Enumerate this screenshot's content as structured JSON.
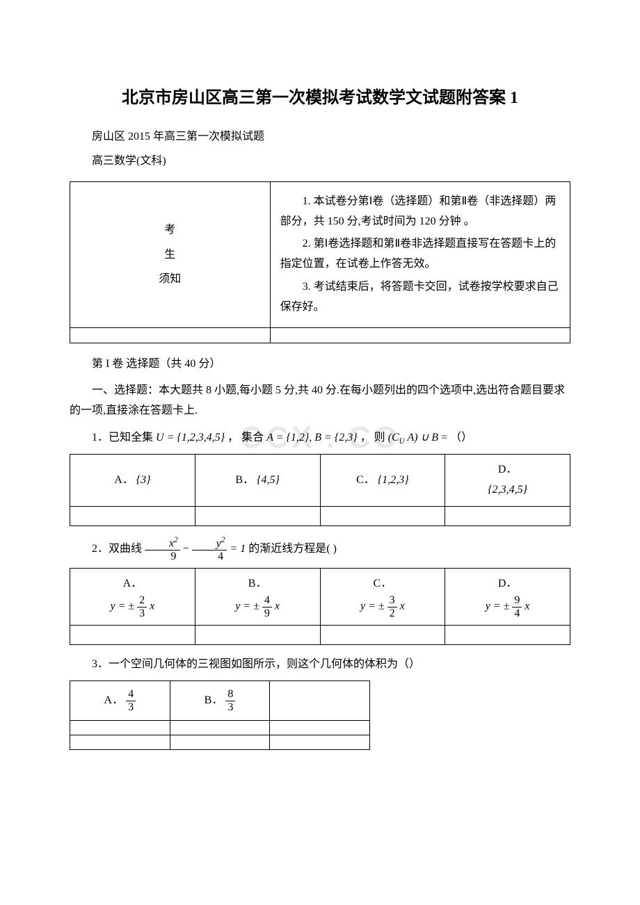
{
  "title": "北京市房山区高三第一次模拟考试数学文试题附答案 1",
  "subtitle1": "房山区 2015 年高三第一次模拟试题",
  "subtitle2": "高三数学(文科)",
  "watermark": "OCX . CO",
  "info_table": {
    "left": "考\n生\n须知",
    "right": [
      "1.  本试卷分第Ⅰ卷（选择题）和第Ⅱ卷（非选择题）两部分，共 150 分,考试时间为 120 分钟 。",
      "2.  第Ⅰ卷选择题和第Ⅱ卷非选择题直接写在答题卡上的指定位置，在试卷上作答无效。",
      "3.  考试结束后，将答题卡交回，试卷按学校要求自己保存好。"
    ]
  },
  "section1": "第 I 卷 选择题（共 40 分）",
  "section1_intro": "一、选择题：本大题共 8 小题,每小题 5 分,共 40 分.在每小题列出的四个选项中,选出符合题目要求的一项,直接涂在答题卡上.",
  "q1": {
    "prefix": "1．已知全集",
    "set_u": "U = {1,2,3,4,5}",
    "mid1": "，  集合",
    "set_a": "A = {1,2},   B = {2,3}",
    "mid2": "，  则",
    "expr": "(C_U A) ∪ B",
    "suffix": " = （）",
    "options": {
      "a_label": "A．",
      "a_val": "{3}",
      "b_label": "B．",
      "b_val": "{4,5}",
      "c_label": "C．",
      "c_val": "{1,2,3}",
      "d_label": "D．",
      "d_val": "{2,3,4,5}"
    }
  },
  "q2": {
    "prefix": "2．双曲线",
    "eq_left_num": "x²",
    "eq_left_den": "9",
    "eq_minus": "−",
    "eq_right_num": "y²",
    "eq_right_den": "4",
    "eq_eq": "= 1",
    "suffix": "的渐近线方程是( )",
    "options": {
      "a_label": "A．",
      "a_num": "2",
      "a_den": "3",
      "b_label": "B．",
      "b_num": "4",
      "b_den": "9",
      "c_label": "C．",
      "c_num": "3",
      "c_den": "2",
      "d_label": "D．",
      "d_num": "9",
      "d_den": "4",
      "y_prefix": "y = ±",
      "y_suffix": "x"
    }
  },
  "q3": {
    "text": "3．一个空间几何体的三视图如图所示，则这个几何体的体积为（）",
    "options": {
      "a_label": "A．",
      "a_num": "4",
      "a_den": "3",
      "b_label": "B．",
      "b_num": "8",
      "b_den": "3"
    }
  }
}
